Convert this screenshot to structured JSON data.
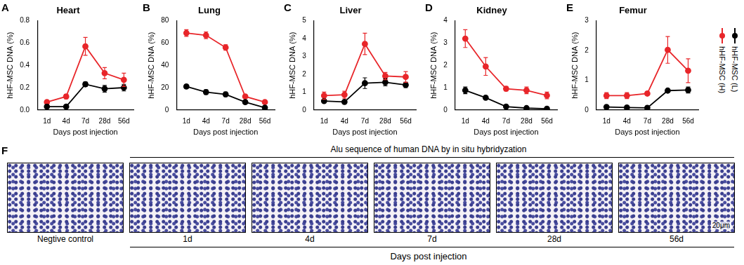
{
  "chart_data": [
    {
      "panel": "A",
      "type": "line",
      "title": "Heart",
      "x_label": "Days post injection",
      "y_label": "hHF-MSC DNA (%)",
      "categories": [
        "1d",
        "4d",
        "7d",
        "28d",
        "56d"
      ],
      "ylim": [
        0,
        0.8
      ],
      "yticks": [
        {
          "value": 0,
          "label": "0.0"
        },
        0.2,
        0.4,
        0.6,
        0.8
      ],
      "grid": false,
      "series": [
        {
          "name": "hHF-MSC (L)",
          "color": "#000000",
          "marker": "circle",
          "values": [
            0.03,
            0.03,
            0.23,
            0.19,
            0.2
          ],
          "errors": [
            0.005,
            0.005,
            0.02,
            0.03,
            0.03
          ]
        },
        {
          "name": "hHF-MSC (H)",
          "color": "#e8262a",
          "marker": "circle",
          "values": [
            0.07,
            0.12,
            0.57,
            0.33,
            0.27
          ],
          "errors": [
            0.01,
            0.02,
            0.08,
            0.05,
            0.06
          ]
        }
      ]
    },
    {
      "panel": "B",
      "type": "line",
      "title": "Lung",
      "x_label": "Days post injection",
      "y_label": "hHF-MSC DNA (%)",
      "categories": [
        "1d",
        "4d",
        "7d",
        "28d",
        "56d"
      ],
      "ylim": [
        0,
        80
      ],
      "yticks": [
        0,
        20,
        40,
        60,
        80
      ],
      "grid": false,
      "series": [
        {
          "name": "hHF-MSC (L)",
          "color": "#000000",
          "marker": "circle",
          "values": [
            21,
            16,
            14,
            7,
            2
          ],
          "errors": [
            1.5,
            2,
            2,
            1,
            0.5
          ]
        },
        {
          "name": "hHF-MSC (H)",
          "color": "#e8262a",
          "marker": "circle",
          "values": [
            69,
            67,
            56,
            12,
            7
          ],
          "errors": [
            3,
            3,
            2.5,
            1.5,
            1
          ]
        }
      ]
    },
    {
      "panel": "C",
      "type": "line",
      "title": "Liver",
      "x_label": "Days post injection",
      "y_label": "hHF-MSC DNA (%)",
      "categories": [
        "1d",
        "4d",
        "7d",
        "28d",
        "56d"
      ],
      "ylim": [
        0,
        5
      ],
      "yticks": [
        0,
        1,
        2,
        3,
        4,
        5
      ],
      "grid": false,
      "series": [
        {
          "name": "hHF-MSC (L)",
          "color": "#000000",
          "marker": "circle",
          "values": [
            0.5,
            0.45,
            1.5,
            1.55,
            1.4
          ],
          "errors": [
            0.05,
            0.05,
            0.3,
            0.2,
            0.15
          ]
        },
        {
          "name": "hHF-MSC (H)",
          "color": "#e8262a",
          "marker": "circle",
          "values": [
            0.8,
            0.85,
            3.7,
            1.9,
            1.85
          ],
          "errors": [
            0.2,
            0.2,
            0.6,
            0.2,
            0.3
          ]
        }
      ]
    },
    {
      "panel": "D",
      "type": "line",
      "title": "Kidney",
      "x_label": "Days post injection",
      "y_label": "hHF-MSC DNA (%)",
      "categories": [
        "1d",
        "4d",
        "7d",
        "28d",
        "56d"
      ],
      "ylim": [
        0,
        4
      ],
      "yticks": [
        0,
        1,
        2,
        3,
        4
      ],
      "grid": false,
      "series": [
        {
          "name": "hHF-MSC (L)",
          "color": "#000000",
          "marker": "circle",
          "values": [
            0.88,
            0.55,
            0.15,
            0.08,
            0.05
          ],
          "errors": [
            0.15,
            0.05,
            0.02,
            0.02,
            0.02
          ]
        },
        {
          "name": "hHF-MSC (H)",
          "color": "#e8262a",
          "marker": "circle",
          "values": [
            3.2,
            1.95,
            0.95,
            0.88,
            0.65
          ],
          "errors": [
            0.4,
            0.4,
            0.1,
            0.15,
            0.15
          ]
        }
      ]
    },
    {
      "panel": "E",
      "type": "line",
      "title": "Femur",
      "x_label": "Days post injection",
      "y_label": "hHF-MSC DNA (%)",
      "categories": [
        "1d",
        "4d",
        "7d",
        "28d",
        "56d"
      ],
      "ylim": [
        0,
        3
      ],
      "yticks": [
        0,
        1,
        2,
        3
      ],
      "grid": false,
      "legend": "right",
      "series": [
        {
          "name": "hHF-MSC (L)",
          "color": "#000000",
          "marker": "circle",
          "values": [
            0.1,
            0.08,
            0.07,
            0.65,
            0.67
          ],
          "errors": [
            0.02,
            0.02,
            0.02,
            0.03,
            0.1
          ]
        },
        {
          "name": "hHF-MSC (H)",
          "color": "#e8262a",
          "marker": "circle",
          "values": [
            0.48,
            0.48,
            0.55,
            2.02,
            1.32
          ],
          "errors": [
            0.1,
            0.1,
            0.05,
            0.45,
            0.4
          ]
        }
      ]
    }
  ],
  "panel_f": {
    "panel": "F",
    "title": "Alu sequence of human DNA by in situ hybridyzation",
    "images": [
      "Negtive control",
      "1d",
      "4d",
      "7d",
      "28d",
      "56d"
    ],
    "x_label": "Days post injection",
    "scale_bar": "20μm"
  }
}
